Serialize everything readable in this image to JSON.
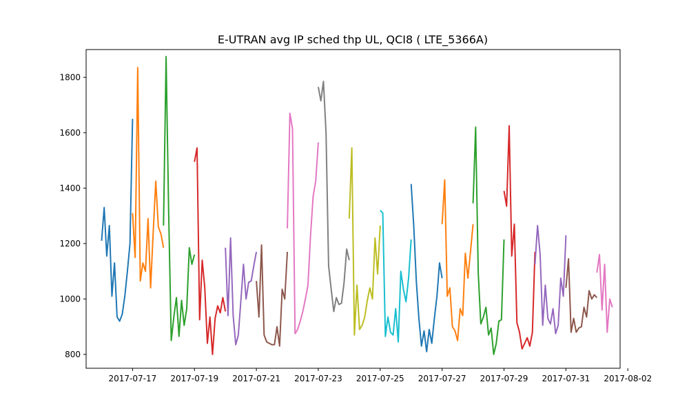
{
  "chart_data": {
    "type": "line",
    "title": "E-UTRAN avg IP sched thp UL, QCI8 ( LTE_5366A)",
    "xlabel": "",
    "ylabel": "",
    "x_type": "date",
    "xlim": [
      "2017-07-15T12:00",
      "2017-08-01T18:00"
    ],
    "ylim": [
      750,
      1900
    ],
    "x_ticks": [
      "2017-07-17",
      "2017-07-19",
      "2017-07-21",
      "2017-07-23",
      "2017-07-25",
      "2017-07-27",
      "2017-07-29",
      "2017-07-31",
      "2017-08-02"
    ],
    "y_ticks": [
      800,
      1000,
      1200,
      1400,
      1600,
      1800
    ],
    "grid": false,
    "legend": "none",
    "series": [
      {
        "color": "#1f77b4",
        "points": [
          [
            "2017-07-16T00:00",
            1210
          ],
          [
            "2017-07-16T02:00",
            1330
          ],
          [
            "2017-07-16T04:00",
            1155
          ],
          [
            "2017-07-16T06:00",
            1265
          ],
          [
            "2017-07-16T08:00",
            1010
          ],
          [
            "2017-07-16T10:00",
            1130
          ],
          [
            "2017-07-16T12:00",
            935
          ],
          [
            "2017-07-16T14:00",
            920
          ],
          [
            "2017-07-16T16:00",
            945
          ],
          [
            "2017-07-16T18:00",
            1010
          ],
          [
            "2017-07-16T20:00",
            1100
          ],
          [
            "2017-07-16T22:00",
            1200
          ],
          [
            "2017-07-17T00:00",
            1650
          ]
        ]
      },
      {
        "color": "#ff7f0e",
        "points": [
          [
            "2017-07-17T00:00",
            1310
          ],
          [
            "2017-07-17T02:00",
            1150
          ],
          [
            "2017-07-17T04:00",
            1835
          ],
          [
            "2017-07-17T06:00",
            1065
          ],
          [
            "2017-07-17T08:00",
            1130
          ],
          [
            "2017-07-17T10:00",
            1100
          ],
          [
            "2017-07-17T12:00",
            1290
          ],
          [
            "2017-07-17T14:00",
            1040
          ],
          [
            "2017-07-17T16:00",
            1240
          ],
          [
            "2017-07-17T18:00",
            1425
          ],
          [
            "2017-07-17T20:00",
            1260
          ],
          [
            "2017-07-17T22:00",
            1235
          ],
          [
            "2017-07-18T00:00",
            1185
          ]
        ]
      },
      {
        "color": "#2ca02c",
        "points": [
          [
            "2017-07-18T00:00",
            1265
          ],
          [
            "2017-07-18T02:00",
            1875
          ],
          [
            "2017-07-18T04:00",
            1310
          ],
          [
            "2017-07-18T06:00",
            850
          ],
          [
            "2017-07-18T08:00",
            935
          ],
          [
            "2017-07-18T10:00",
            1005
          ],
          [
            "2017-07-18T12:00",
            865
          ],
          [
            "2017-07-18T14:00",
            995
          ],
          [
            "2017-07-18T16:00",
            905
          ],
          [
            "2017-07-18T18:00",
            965
          ],
          [
            "2017-07-18T20:00",
            1185
          ],
          [
            "2017-07-18T22:00",
            1125
          ],
          [
            "2017-07-19T00:00",
            1160
          ]
        ]
      },
      {
        "color": "#d62728",
        "points": [
          [
            "2017-07-19T00:00",
            1495
          ],
          [
            "2017-07-19T02:00",
            1545
          ],
          [
            "2017-07-19T04:00",
            925
          ],
          [
            "2017-07-19T06:00",
            1140
          ],
          [
            "2017-07-19T08:00",
            1040
          ],
          [
            "2017-07-19T10:00",
            840
          ],
          [
            "2017-07-19T12:00",
            935
          ],
          [
            "2017-07-19T14:00",
            800
          ],
          [
            "2017-07-19T16:00",
            930
          ],
          [
            "2017-07-19T18:00",
            975
          ],
          [
            "2017-07-19T20:00",
            950
          ],
          [
            "2017-07-19T22:00",
            1005
          ],
          [
            "2017-07-20T00:00",
            955
          ]
        ]
      },
      {
        "color": "#9467bd",
        "points": [
          [
            "2017-07-20T00:00",
            1185
          ],
          [
            "2017-07-20T02:00",
            940
          ],
          [
            "2017-07-20T04:00",
            1220
          ],
          [
            "2017-07-20T06:00",
            940
          ],
          [
            "2017-07-20T08:00",
            835
          ],
          [
            "2017-07-20T10:00",
            870
          ],
          [
            "2017-07-20T12:00",
            995
          ],
          [
            "2017-07-20T14:00",
            1125
          ],
          [
            "2017-07-20T16:00",
            1000
          ],
          [
            "2017-07-20T18:00",
            1060
          ],
          [
            "2017-07-20T20:00",
            1065
          ],
          [
            "2017-07-20T22:00",
            1120
          ],
          [
            "2017-07-21T00:00",
            1170
          ]
        ]
      },
      {
        "color": "#8c564b",
        "points": [
          [
            "2017-07-21T00:00",
            1065
          ],
          [
            "2017-07-21T02:00",
            935
          ],
          [
            "2017-07-21T04:00",
            1195
          ],
          [
            "2017-07-21T06:00",
            870
          ],
          [
            "2017-07-21T08:00",
            845
          ],
          [
            "2017-07-21T10:00",
            840
          ],
          [
            "2017-07-21T12:00",
            835
          ],
          [
            "2017-07-21T14:00",
            835
          ],
          [
            "2017-07-21T16:00",
            900
          ],
          [
            "2017-07-21T18:00",
            830
          ],
          [
            "2017-07-21T20:00",
            1035
          ],
          [
            "2017-07-21T22:00",
            1000
          ],
          [
            "2017-07-22T00:00",
            1170
          ]
        ]
      },
      {
        "color": "#e377c2",
        "points": [
          [
            "2017-07-22T00:00",
            1255
          ],
          [
            "2017-07-22T02:00",
            1670
          ],
          [
            "2017-07-22T04:00",
            1615
          ],
          [
            "2017-07-22T06:00",
            875
          ],
          [
            "2017-07-22T08:00",
            890
          ],
          [
            "2017-07-22T10:00",
            920
          ],
          [
            "2017-07-22T12:00",
            955
          ],
          [
            "2017-07-22T14:00",
            1000
          ],
          [
            "2017-07-22T16:00",
            1050
          ],
          [
            "2017-07-22T18:00",
            1230
          ],
          [
            "2017-07-22T20:00",
            1370
          ],
          [
            "2017-07-22T22:00",
            1425
          ],
          [
            "2017-07-23T00:00",
            1565
          ]
        ]
      },
      {
        "color": "#7f7f7f",
        "points": [
          [
            "2017-07-23T00:00",
            1765
          ],
          [
            "2017-07-23T02:00",
            1715
          ],
          [
            "2017-07-23T04:00",
            1785
          ],
          [
            "2017-07-23T06:00",
            1600
          ],
          [
            "2017-07-23T08:00",
            1120
          ],
          [
            "2017-07-23T10:00",
            1035
          ],
          [
            "2017-07-23T12:00",
            955
          ],
          [
            "2017-07-23T14:00",
            1005
          ],
          [
            "2017-07-23T16:00",
            980
          ],
          [
            "2017-07-23T18:00",
            985
          ],
          [
            "2017-07-23T20:00",
            1060
          ],
          [
            "2017-07-23T22:00",
            1180
          ],
          [
            "2017-07-24T00:00",
            1140
          ]
        ]
      },
      {
        "color": "#bcbd22",
        "points": [
          [
            "2017-07-24T00:00",
            1290
          ],
          [
            "2017-07-24T02:00",
            1545
          ],
          [
            "2017-07-24T04:00",
            870
          ],
          [
            "2017-07-24T06:00",
            1050
          ],
          [
            "2017-07-24T08:00",
            890
          ],
          [
            "2017-07-24T10:00",
            905
          ],
          [
            "2017-07-24T12:00",
            935
          ],
          [
            "2017-07-24T14:00",
            995
          ],
          [
            "2017-07-24T16:00",
            1040
          ],
          [
            "2017-07-24T18:00",
            1000
          ],
          [
            "2017-07-24T20:00",
            1220
          ],
          [
            "2017-07-24T22:00",
            1090
          ],
          [
            "2017-07-25T00:00",
            1265
          ]
        ]
      },
      {
        "color": "#17becf",
        "points": [
          [
            "2017-07-25T00:00",
            1320
          ],
          [
            "2017-07-25T02:00",
            1310
          ],
          [
            "2017-07-25T04:00",
            865
          ],
          [
            "2017-07-25T06:00",
            935
          ],
          [
            "2017-07-25T08:00",
            880
          ],
          [
            "2017-07-25T10:00",
            870
          ],
          [
            "2017-07-25T12:00",
            965
          ],
          [
            "2017-07-25T14:00",
            845
          ],
          [
            "2017-07-25T16:00",
            1100
          ],
          [
            "2017-07-25T18:00",
            1035
          ],
          [
            "2017-07-25T20:00",
            990
          ],
          [
            "2017-07-25T22:00",
            1075
          ],
          [
            "2017-07-26T00:00",
            1215
          ]
        ]
      },
      {
        "color": "#1f77b4",
        "points": [
          [
            "2017-07-26T00:00",
            1415
          ],
          [
            "2017-07-26T02:00",
            1265
          ],
          [
            "2017-07-26T04:00",
            1065
          ],
          [
            "2017-07-26T06:00",
            930
          ],
          [
            "2017-07-26T08:00",
            830
          ],
          [
            "2017-07-26T10:00",
            885
          ],
          [
            "2017-07-26T12:00",
            810
          ],
          [
            "2017-07-26T14:00",
            890
          ],
          [
            "2017-07-26T16:00",
            840
          ],
          [
            "2017-07-26T18:00",
            930
          ],
          [
            "2017-07-26T20:00",
            1010
          ],
          [
            "2017-07-26T22:00",
            1130
          ],
          [
            "2017-07-27T00:00",
            1075
          ]
        ]
      },
      {
        "color": "#ff7f0e",
        "points": [
          [
            "2017-07-27T00:00",
            1270
          ],
          [
            "2017-07-27T02:00",
            1430
          ],
          [
            "2017-07-27T04:00",
            1010
          ],
          [
            "2017-07-27T06:00",
            1040
          ],
          [
            "2017-07-27T08:00",
            900
          ],
          [
            "2017-07-27T10:00",
            885
          ],
          [
            "2017-07-27T12:00",
            850
          ],
          [
            "2017-07-27T14:00",
            965
          ],
          [
            "2017-07-27T16:00",
            940
          ],
          [
            "2017-07-27T18:00",
            1165
          ],
          [
            "2017-07-27T20:00",
            1075
          ],
          [
            "2017-07-27T22:00",
            1170
          ],
          [
            "2017-07-28T00:00",
            1270
          ]
        ]
      },
      {
        "color": "#2ca02c",
        "points": [
          [
            "2017-07-28T00:00",
            1345
          ],
          [
            "2017-07-28T02:00",
            1620
          ],
          [
            "2017-07-28T04:00",
            1095
          ],
          [
            "2017-07-28T06:00",
            910
          ],
          [
            "2017-07-28T08:00",
            935
          ],
          [
            "2017-07-28T10:00",
            970
          ],
          [
            "2017-07-28T12:00",
            870
          ],
          [
            "2017-07-28T14:00",
            895
          ],
          [
            "2017-07-28T16:00",
            800
          ],
          [
            "2017-07-28T18:00",
            840
          ],
          [
            "2017-07-28T20:00",
            920
          ],
          [
            "2017-07-28T22:00",
            925
          ],
          [
            "2017-07-29T00:00",
            1215
          ]
        ]
      },
      {
        "color": "#d62728",
        "points": [
          [
            "2017-07-29T00:00",
            1390
          ],
          [
            "2017-07-29T02:00",
            1335
          ],
          [
            "2017-07-29T04:00",
            1625
          ],
          [
            "2017-07-29T06:00",
            1155
          ],
          [
            "2017-07-29T08:00",
            1270
          ],
          [
            "2017-07-29T10:00",
            915
          ],
          [
            "2017-07-29T12:00",
            880
          ],
          [
            "2017-07-29T14:00",
            820
          ],
          [
            "2017-07-29T16:00",
            840
          ],
          [
            "2017-07-29T18:00",
            860
          ],
          [
            "2017-07-29T20:00",
            830
          ],
          [
            "2017-07-29T22:00",
            880
          ],
          [
            "2017-07-30T00:00",
            1170
          ]
        ]
      },
      {
        "color": "#9467bd",
        "points": [
          [
            "2017-07-30T00:00",
            1125
          ],
          [
            "2017-07-30T02:00",
            1265
          ],
          [
            "2017-07-30T04:00",
            1160
          ],
          [
            "2017-07-30T06:00",
            905
          ],
          [
            "2017-07-30T08:00",
            1050
          ],
          [
            "2017-07-30T10:00",
            930
          ],
          [
            "2017-07-30T12:00",
            910
          ],
          [
            "2017-07-30T14:00",
            965
          ],
          [
            "2017-07-30T16:00",
            875
          ],
          [
            "2017-07-30T18:00",
            905
          ],
          [
            "2017-07-30T20:00",
            1075
          ],
          [
            "2017-07-30T22:00",
            1010
          ],
          [
            "2017-07-31T00:00",
            1230
          ]
        ]
      },
      {
        "color": "#8c564b",
        "points": [
          [
            "2017-07-31T00:00",
            1040
          ],
          [
            "2017-07-31T02:00",
            1145
          ],
          [
            "2017-07-31T04:00",
            880
          ],
          [
            "2017-07-31T06:00",
            930
          ],
          [
            "2017-07-31T08:00",
            880
          ],
          [
            "2017-07-31T10:00",
            895
          ],
          [
            "2017-07-31T12:00",
            900
          ],
          [
            "2017-07-31T14:00",
            970
          ],
          [
            "2017-07-31T16:00",
            935
          ],
          [
            "2017-07-31T18:00",
            1030
          ],
          [
            "2017-07-31T20:00",
            1000
          ],
          [
            "2017-07-31T22:00",
            1015
          ],
          [
            "2017-08-01T00:00",
            1005
          ]
        ]
      },
      {
        "color": "#e377c2",
        "points": [
          [
            "2017-08-01T00:00",
            1095
          ],
          [
            "2017-08-01T02:00",
            1160
          ],
          [
            "2017-08-01T04:00",
            960
          ],
          [
            "2017-08-01T06:00",
            1125
          ],
          [
            "2017-08-01T08:00",
            880
          ],
          [
            "2017-08-01T10:00",
            1000
          ],
          [
            "2017-08-01T12:00",
            970
          ]
        ]
      }
    ]
  }
}
